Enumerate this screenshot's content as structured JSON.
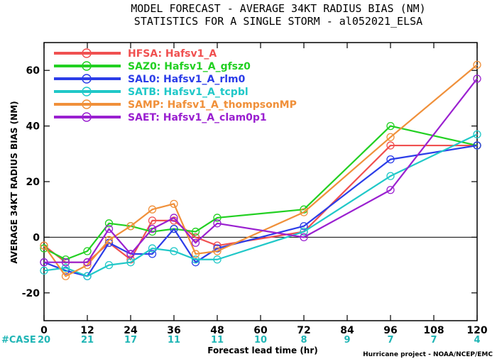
{
  "chart_data": {
    "type": "line",
    "title": "MODEL FORECAST - AVERAGE 34KT RADIUS BIAS (NM)",
    "subtitle": "STATISTICS FOR A SINGLE STORM - al052021_ELSA",
    "xlabel": "Forecast lead time (hr)",
    "ylabel": "AVERAGE 34KT RADIUS BIAS (NM)",
    "xlim": [
      0,
      120
    ],
    "ylim": [
      -30,
      70
    ],
    "x_ticks": [
      0,
      12,
      24,
      36,
      48,
      60,
      72,
      84,
      96,
      108,
      120
    ],
    "y_ticks": [
      -20,
      0,
      20,
      40,
      60
    ],
    "y_tick_labels": [
      "-20",
      "0",
      "20",
      "40",
      "60"
    ],
    "zero_line": 0,
    "legend_position": "top-left",
    "x": [
      0,
      6,
      12,
      18,
      24,
      30,
      36,
      42,
      48,
      72,
      96,
      120
    ],
    "series": [
      {
        "name": "HFSA:  Hafsv1_A",
        "color": "#f05050",
        "values": [
          -3,
          -9,
          -9,
          -2,
          -8,
          6,
          6,
          0,
          -3,
          2,
          33,
          33
        ]
      },
      {
        "name": "SAZ0:  Hafsv1_A_gfsz0",
        "color": "#22d022",
        "values": [
          -4,
          -8,
          -5,
          5,
          4,
          2,
          3,
          2,
          7,
          10,
          40,
          33
        ]
      },
      {
        "name": "SAL0:  Hafsv1_A_rlm0",
        "color": "#2b3de8",
        "values": [
          -9,
          -12,
          -14,
          -2,
          -6,
          -6,
          3,
          -9,
          -4,
          4,
          28,
          33
        ]
      },
      {
        "name": "SATB:  Hafsv1_A_tcpbl",
        "color": "#20c8c8",
        "values": [
          -12,
          -11,
          -14,
          -10,
          -9,
          -4,
          -5,
          -8,
          -8,
          2,
          22,
          37
        ]
      },
      {
        "name": "SAMP:  Hafsv1_A_thompsonMP",
        "color": "#f0903a",
        "values": [
          -3,
          -14,
          -10,
          -1,
          4,
          10,
          12,
          -6,
          -5,
          9,
          36,
          62
        ]
      },
      {
        "name": "SAET:  Hafsv1_A_clam0p1",
        "color": "#9a20d0",
        "values": [
          -9,
          -9,
          -9,
          3,
          -6,
          3,
          7,
          -2,
          5,
          0,
          17,
          57
        ]
      }
    ],
    "case_label": "#CASE",
    "case_x": [
      0,
      12,
      24,
      36,
      48,
      60,
      72,
      84,
      96,
      108,
      120
    ],
    "case_counts": [
      "20",
      "21",
      "17",
      "11",
      "11",
      "10",
      "8",
      "9",
      "7",
      "7",
      "4"
    ],
    "credit": "Hurricane project - NOAA/NCEP/EMC"
  }
}
